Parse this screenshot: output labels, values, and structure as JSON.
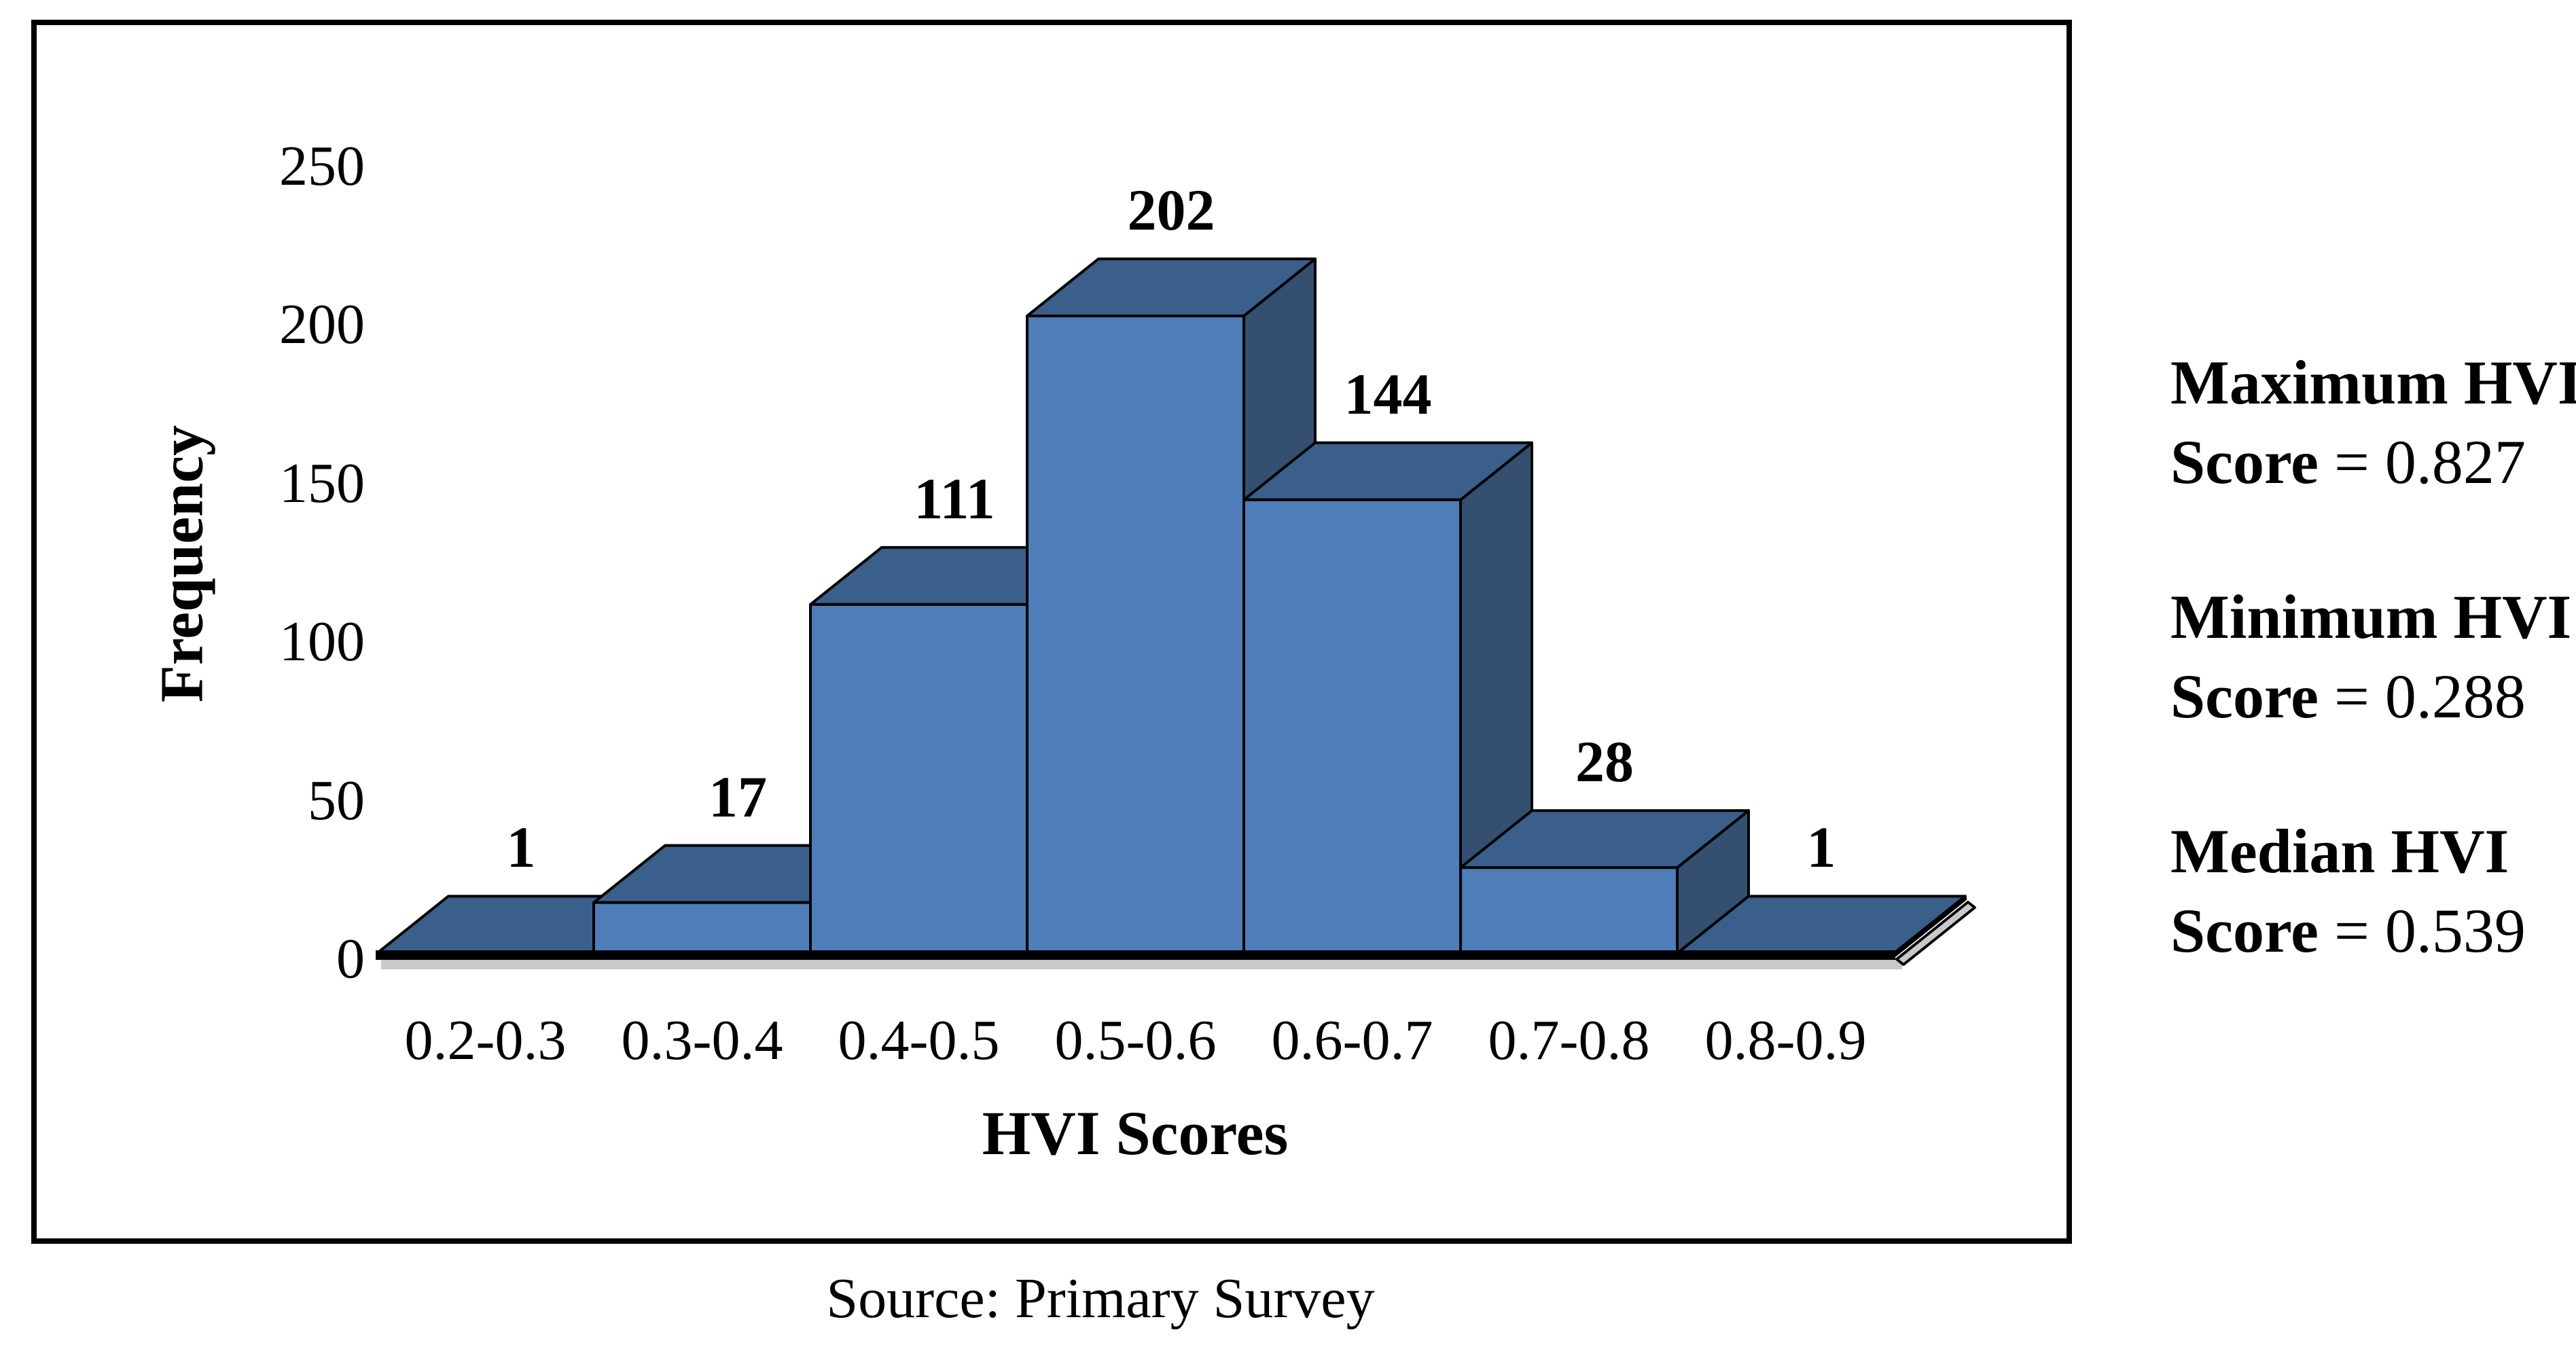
{
  "chart_data": {
    "type": "bar",
    "variant": "3d-column-histogram",
    "title": "",
    "categories": [
      "0.2-0.3",
      "0.3-0.4",
      "0.4-0.5",
      "0.5-0.6",
      "0.6-0.7",
      "0.7-0.8",
      "0.8-0.9"
    ],
    "values": [
      1,
      17,
      111,
      202,
      144,
      28,
      1
    ],
    "xlabel": "HVI Scores",
    "ylabel": "Frequency",
    "yticks": [
      0,
      50,
      100,
      150,
      200,
      250
    ],
    "ylim": [
      0,
      250
    ],
    "grid": false,
    "legend": false,
    "colors": {
      "bar_front": "#4E7DB9",
      "bar_top": "#3B5F8B",
      "bar_side": "#344F70",
      "outline": "#000000",
      "shadow": "#c9c9c9"
    }
  },
  "caption": "Source: Primary Survey",
  "stats": [
    {
      "label": "Maximum HVI",
      "score_text": "Score",
      "value_text": "= 0.827"
    },
    {
      "label": "Minimum HVI",
      "score_text": "Score",
      "value_text": "= 0.288"
    },
    {
      "label": "Median HVI",
      "score_text": "Score",
      "value_text": "= 0.539"
    }
  ]
}
